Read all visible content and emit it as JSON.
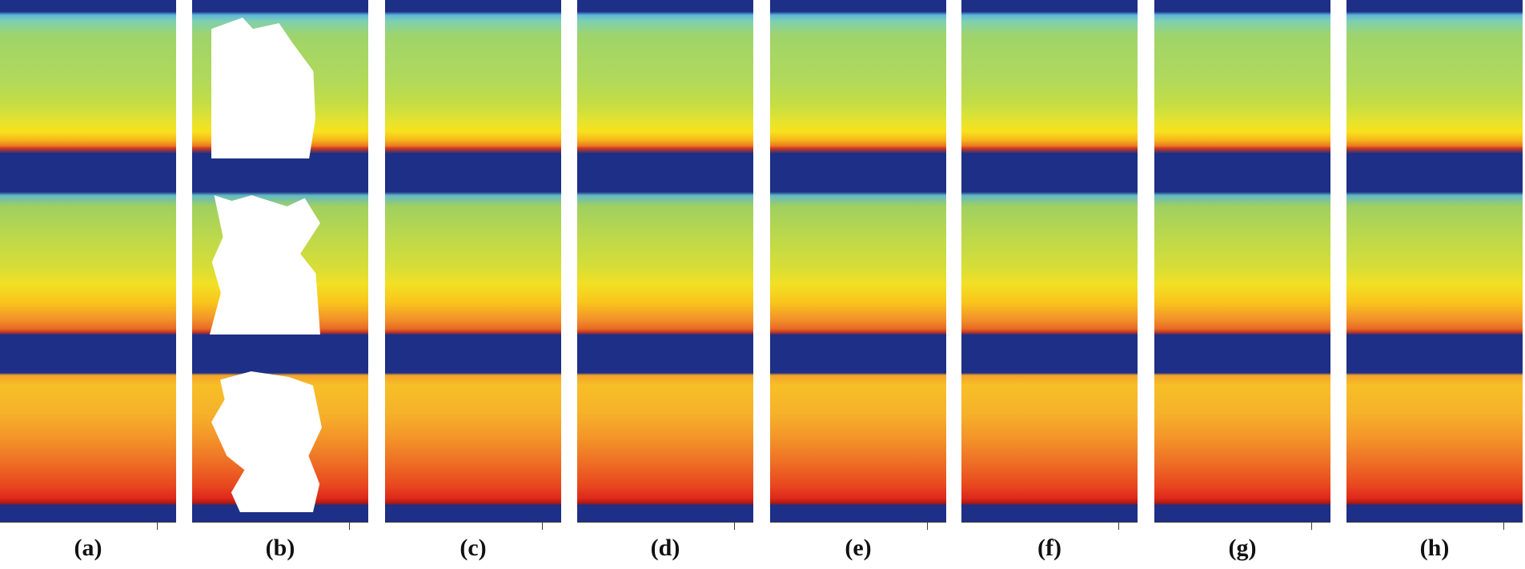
{
  "figure": {
    "panels": [
      {
        "id": "a",
        "label": "(a)"
      },
      {
        "id": "b",
        "label": "(b)"
      },
      {
        "id": "c",
        "label": "(c)"
      },
      {
        "id": "d",
        "label": "(d)"
      },
      {
        "id": "e",
        "label": "(e)"
      },
      {
        "id": "f",
        "label": "(f)"
      },
      {
        "id": "g",
        "label": "(g)"
      },
      {
        "id": "h",
        "label": "(h)"
      }
    ],
    "colors": {
      "background_band": "#1d2f86",
      "mask": "#ffffff"
    },
    "icons": [
      "heatmap-image",
      "occlusion-mask"
    ]
  }
}
